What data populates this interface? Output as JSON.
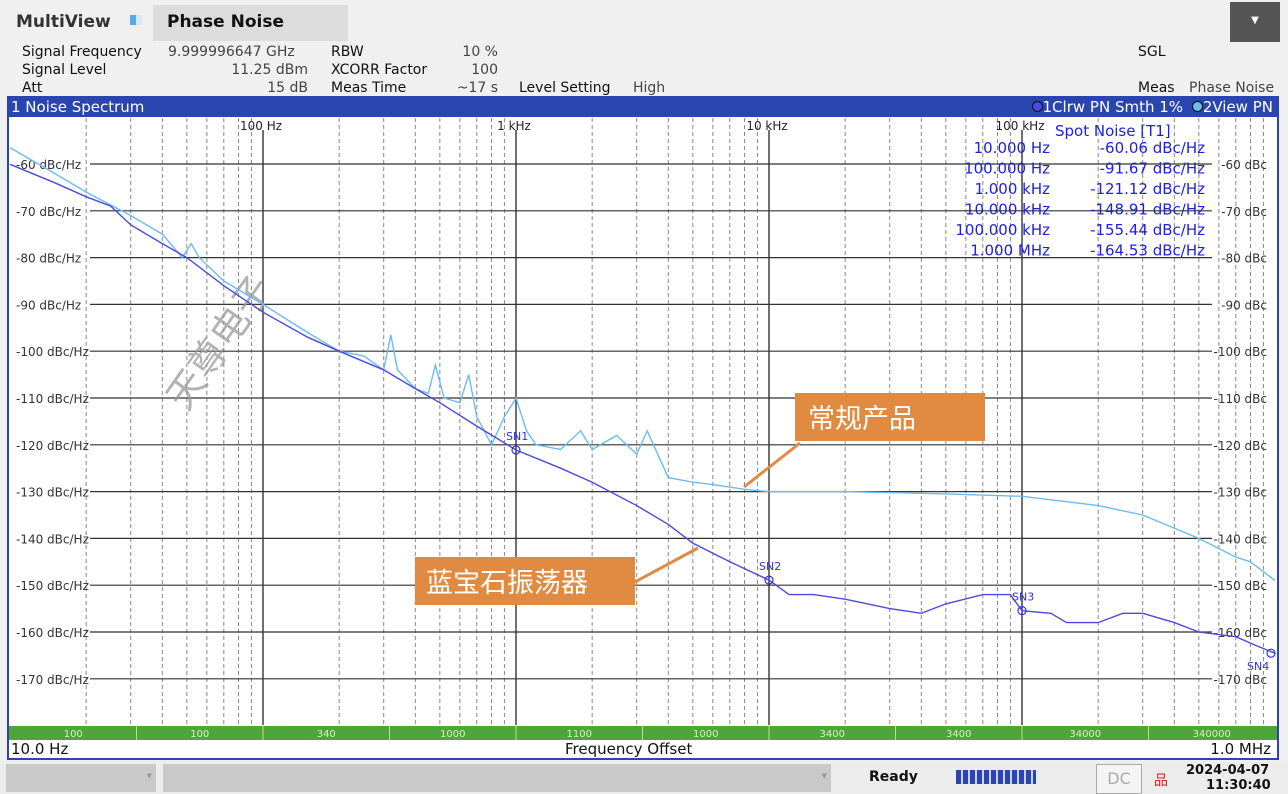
{
  "header": {
    "app": "MultiView",
    "tab": "Phase Noise",
    "dropdown_icon": "caret-down-icon"
  },
  "info": {
    "signal_frequency_label": "Signal Frequency",
    "signal_frequency": "9.999996647 GHz",
    "signal_level_label": "Signal Level",
    "signal_level": "11.25 dBm",
    "att_label": "Att",
    "att": "15 dB",
    "rbw_label": "RBW",
    "rbw": "10 %",
    "xcorr_label": "XCORR Factor",
    "xcorr": "100",
    "meas_time_label": "Meas Time",
    "meas_time": "~17 s",
    "level_setting_label": "Level Setting",
    "level_setting": "High",
    "sweep_mode": "SGL",
    "meas_label": "Meas",
    "meas": "Phase Noise"
  },
  "window": {
    "title": "1 Noise Spectrum",
    "trace1_info": "1Clrw PN Smth 1%",
    "trace2_info": "2View PN"
  },
  "spot_noise": {
    "title": "Spot Noise [T1]",
    "rows": [
      {
        "offset": "10.000 Hz",
        "value": "-60.06 dBc/Hz"
      },
      {
        "offset": "100.000 Hz",
        "value": "-91.67 dBc/Hz"
      },
      {
        "offset": "1.000 kHz",
        "value": "-121.12 dBc/Hz"
      },
      {
        "offset": "10.000 kHz",
        "value": "-148.91 dBc/Hz"
      },
      {
        "offset": "100.000 kHz",
        "value": "-155.44 dBc/Hz"
      },
      {
        "offset": "1.000 MHz",
        "value": "-164.53 dBc/Hz"
      }
    ]
  },
  "annotations": {
    "conventional": "常规产品",
    "sapphire": "蓝宝石振荡器",
    "watermark": "天尊电子"
  },
  "range_bar": [
    "100",
    "100",
    "340",
    "1000",
    "1100",
    "1000",
    "3400",
    "3400",
    "34000",
    "340000"
  ],
  "footer": {
    "start": "10.0 Hz",
    "axis_label": "Frequency Offset",
    "stop": "1.0 MHz"
  },
  "status": {
    "ready": "Ready",
    "dc": "DC",
    "date": "2024-04-07",
    "time": "11:30:40"
  },
  "colors": {
    "frame": "#2a45b0",
    "trace1": "#4a4ae0",
    "trace2": "#6cbcf0",
    "range_bar": "#4ea63a",
    "annotation": "#e08a42"
  },
  "chart_data": {
    "type": "line",
    "xscale": "log",
    "xlim": [
      10,
      1000000
    ],
    "ylim": [
      -180,
      -50
    ],
    "grid": true,
    "xticks": [
      {
        "value": 100,
        "label": "100 Hz"
      },
      {
        "value": 1000,
        "label": "1 kHz"
      },
      {
        "value": 10000,
        "label": "10 kHz"
      },
      {
        "value": 100000,
        "label": "100 kHz"
      }
    ],
    "yticks_left": [
      {
        "value": -60,
        "label": "-60 dBc/Hz"
      },
      {
        "value": -70,
        "label": "-70 dBc/Hz"
      },
      {
        "value": -80,
        "label": "-80 dBc/Hz"
      },
      {
        "value": -90,
        "label": "-90 dBc/Hz"
      },
      {
        "value": -100,
        "label": "-100 dBc/Hz"
      },
      {
        "value": -110,
        "label": "-110 dBc/Hz"
      },
      {
        "value": -120,
        "label": "-120 dBc/Hz"
      },
      {
        "value": -130,
        "label": "-130 dBc/Hz"
      },
      {
        "value": -140,
        "label": "-140 dBc/Hz"
      },
      {
        "value": -150,
        "label": "-150 dBc/Hz"
      },
      {
        "value": -160,
        "label": "-160 dBc/Hz"
      },
      {
        "value": -170,
        "label": "-170 dBc/Hz"
      }
    ],
    "yticks_right": [
      {
        "value": -60,
        "label": "-60 dBc"
      },
      {
        "value": -70,
        "label": "-70 dBc"
      },
      {
        "value": -80,
        "label": "-80 dBc"
      },
      {
        "value": -90,
        "label": "-90 dBc"
      },
      {
        "value": -100,
        "label": "-100 dBc"
      },
      {
        "value": -110,
        "label": "-110 dBc"
      },
      {
        "value": -120,
        "label": "-120 dBc"
      },
      {
        "value": -130,
        "label": "-130 dBc"
      },
      {
        "value": -140,
        "label": "-140 dBc"
      },
      {
        "value": -150,
        "label": "-150 dBc"
      },
      {
        "value": -160,
        "label": "-160 dBc"
      },
      {
        "value": -170,
        "label": "-170 dBc"
      }
    ],
    "series": [
      {
        "trace": "1",
        "color": "#4a4ae0",
        "points": [
          [
            10,
            -60.06
          ],
          [
            15,
            -64
          ],
          [
            20,
            -67
          ],
          [
            25,
            -69
          ],
          [
            30,
            -73
          ],
          [
            40,
            -77
          ],
          [
            50,
            -80
          ],
          [
            70,
            -86
          ],
          [
            100,
            -91.67
          ],
          [
            150,
            -97
          ],
          [
            200,
            -100
          ],
          [
            300,
            -104
          ],
          [
            400,
            -108
          ],
          [
            500,
            -111
          ],
          [
            700,
            -116
          ],
          [
            1000,
            -121.12
          ],
          [
            1500,
            -125
          ],
          [
            2000,
            -128
          ],
          [
            3000,
            -133
          ],
          [
            4000,
            -137
          ],
          [
            5000,
            -141
          ],
          [
            7000,
            -145
          ],
          [
            10000,
            -148.91
          ],
          [
            12000,
            -152
          ],
          [
            15000,
            -152
          ],
          [
            20000,
            -153
          ],
          [
            30000,
            -155
          ],
          [
            40000,
            -156
          ],
          [
            50000,
            -154
          ],
          [
            70000,
            -152
          ],
          [
            90000,
            -152
          ],
          [
            100000,
            -155.44
          ],
          [
            130000,
            -156
          ],
          [
            150000,
            -158
          ],
          [
            200000,
            -158
          ],
          [
            250000,
            -156
          ],
          [
            300000,
            -156
          ],
          [
            400000,
            -158
          ],
          [
            500000,
            -160
          ],
          [
            700000,
            -161
          ],
          [
            850000,
            -163
          ],
          [
            1000000,
            -164.53
          ]
        ],
        "markers": [
          {
            "label": "SN1",
            "x": 1000,
            "y": -121.12
          },
          {
            "label": "SN2",
            "x": 10000,
            "y": -148.91
          },
          {
            "label": "SN3",
            "x": 100000,
            "y": -155.44
          },
          {
            "label": "SN4",
            "x": 1000000,
            "y": -164.53
          }
        ]
      },
      {
        "trace": "2",
        "color": "#6cbcf0",
        "points": [
          [
            10,
            -56.5
          ],
          [
            15,
            -62
          ],
          [
            20,
            -66
          ],
          [
            30,
            -71
          ],
          [
            40,
            -75
          ],
          [
            48,
            -80
          ],
          [
            52,
            -77
          ],
          [
            56,
            -80
          ],
          [
            70,
            -85
          ],
          [
            100,
            -90
          ],
          [
            150,
            -96
          ],
          [
            200,
            -100
          ],
          [
            250,
            -101
          ],
          [
            300,
            -104
          ],
          [
            320,
            -96.5
          ],
          [
            340,
            -104
          ],
          [
            400,
            -108
          ],
          [
            450,
            -109
          ],
          [
            480,
            -103
          ],
          [
            520,
            -110
          ],
          [
            600,
            -111
          ],
          [
            650,
            -105
          ],
          [
            700,
            -114
          ],
          [
            800,
            -120
          ],
          [
            900,
            -114
          ],
          [
            1000,
            -110
          ],
          [
            1100,
            -117
          ],
          [
            1200,
            -120
          ],
          [
            1500,
            -121
          ],
          [
            1800,
            -117
          ],
          [
            2000,
            -121
          ],
          [
            2500,
            -118
          ],
          [
            3000,
            -122
          ],
          [
            3300,
            -117
          ],
          [
            3700,
            -123
          ],
          [
            4000,
            -127
          ],
          [
            5000,
            -128
          ],
          [
            6000,
            -128.5
          ],
          [
            8000,
            -129.5
          ],
          [
            10000,
            -130
          ],
          [
            20000,
            -130
          ],
          [
            50000,
            -130.5
          ],
          [
            100000,
            -131
          ],
          [
            200000,
            -133
          ],
          [
            300000,
            -135
          ],
          [
            500000,
            -140
          ],
          [
            700000,
            -144
          ],
          [
            800000,
            -145
          ],
          [
            1000000,
            -149
          ]
        ]
      }
    ]
  }
}
